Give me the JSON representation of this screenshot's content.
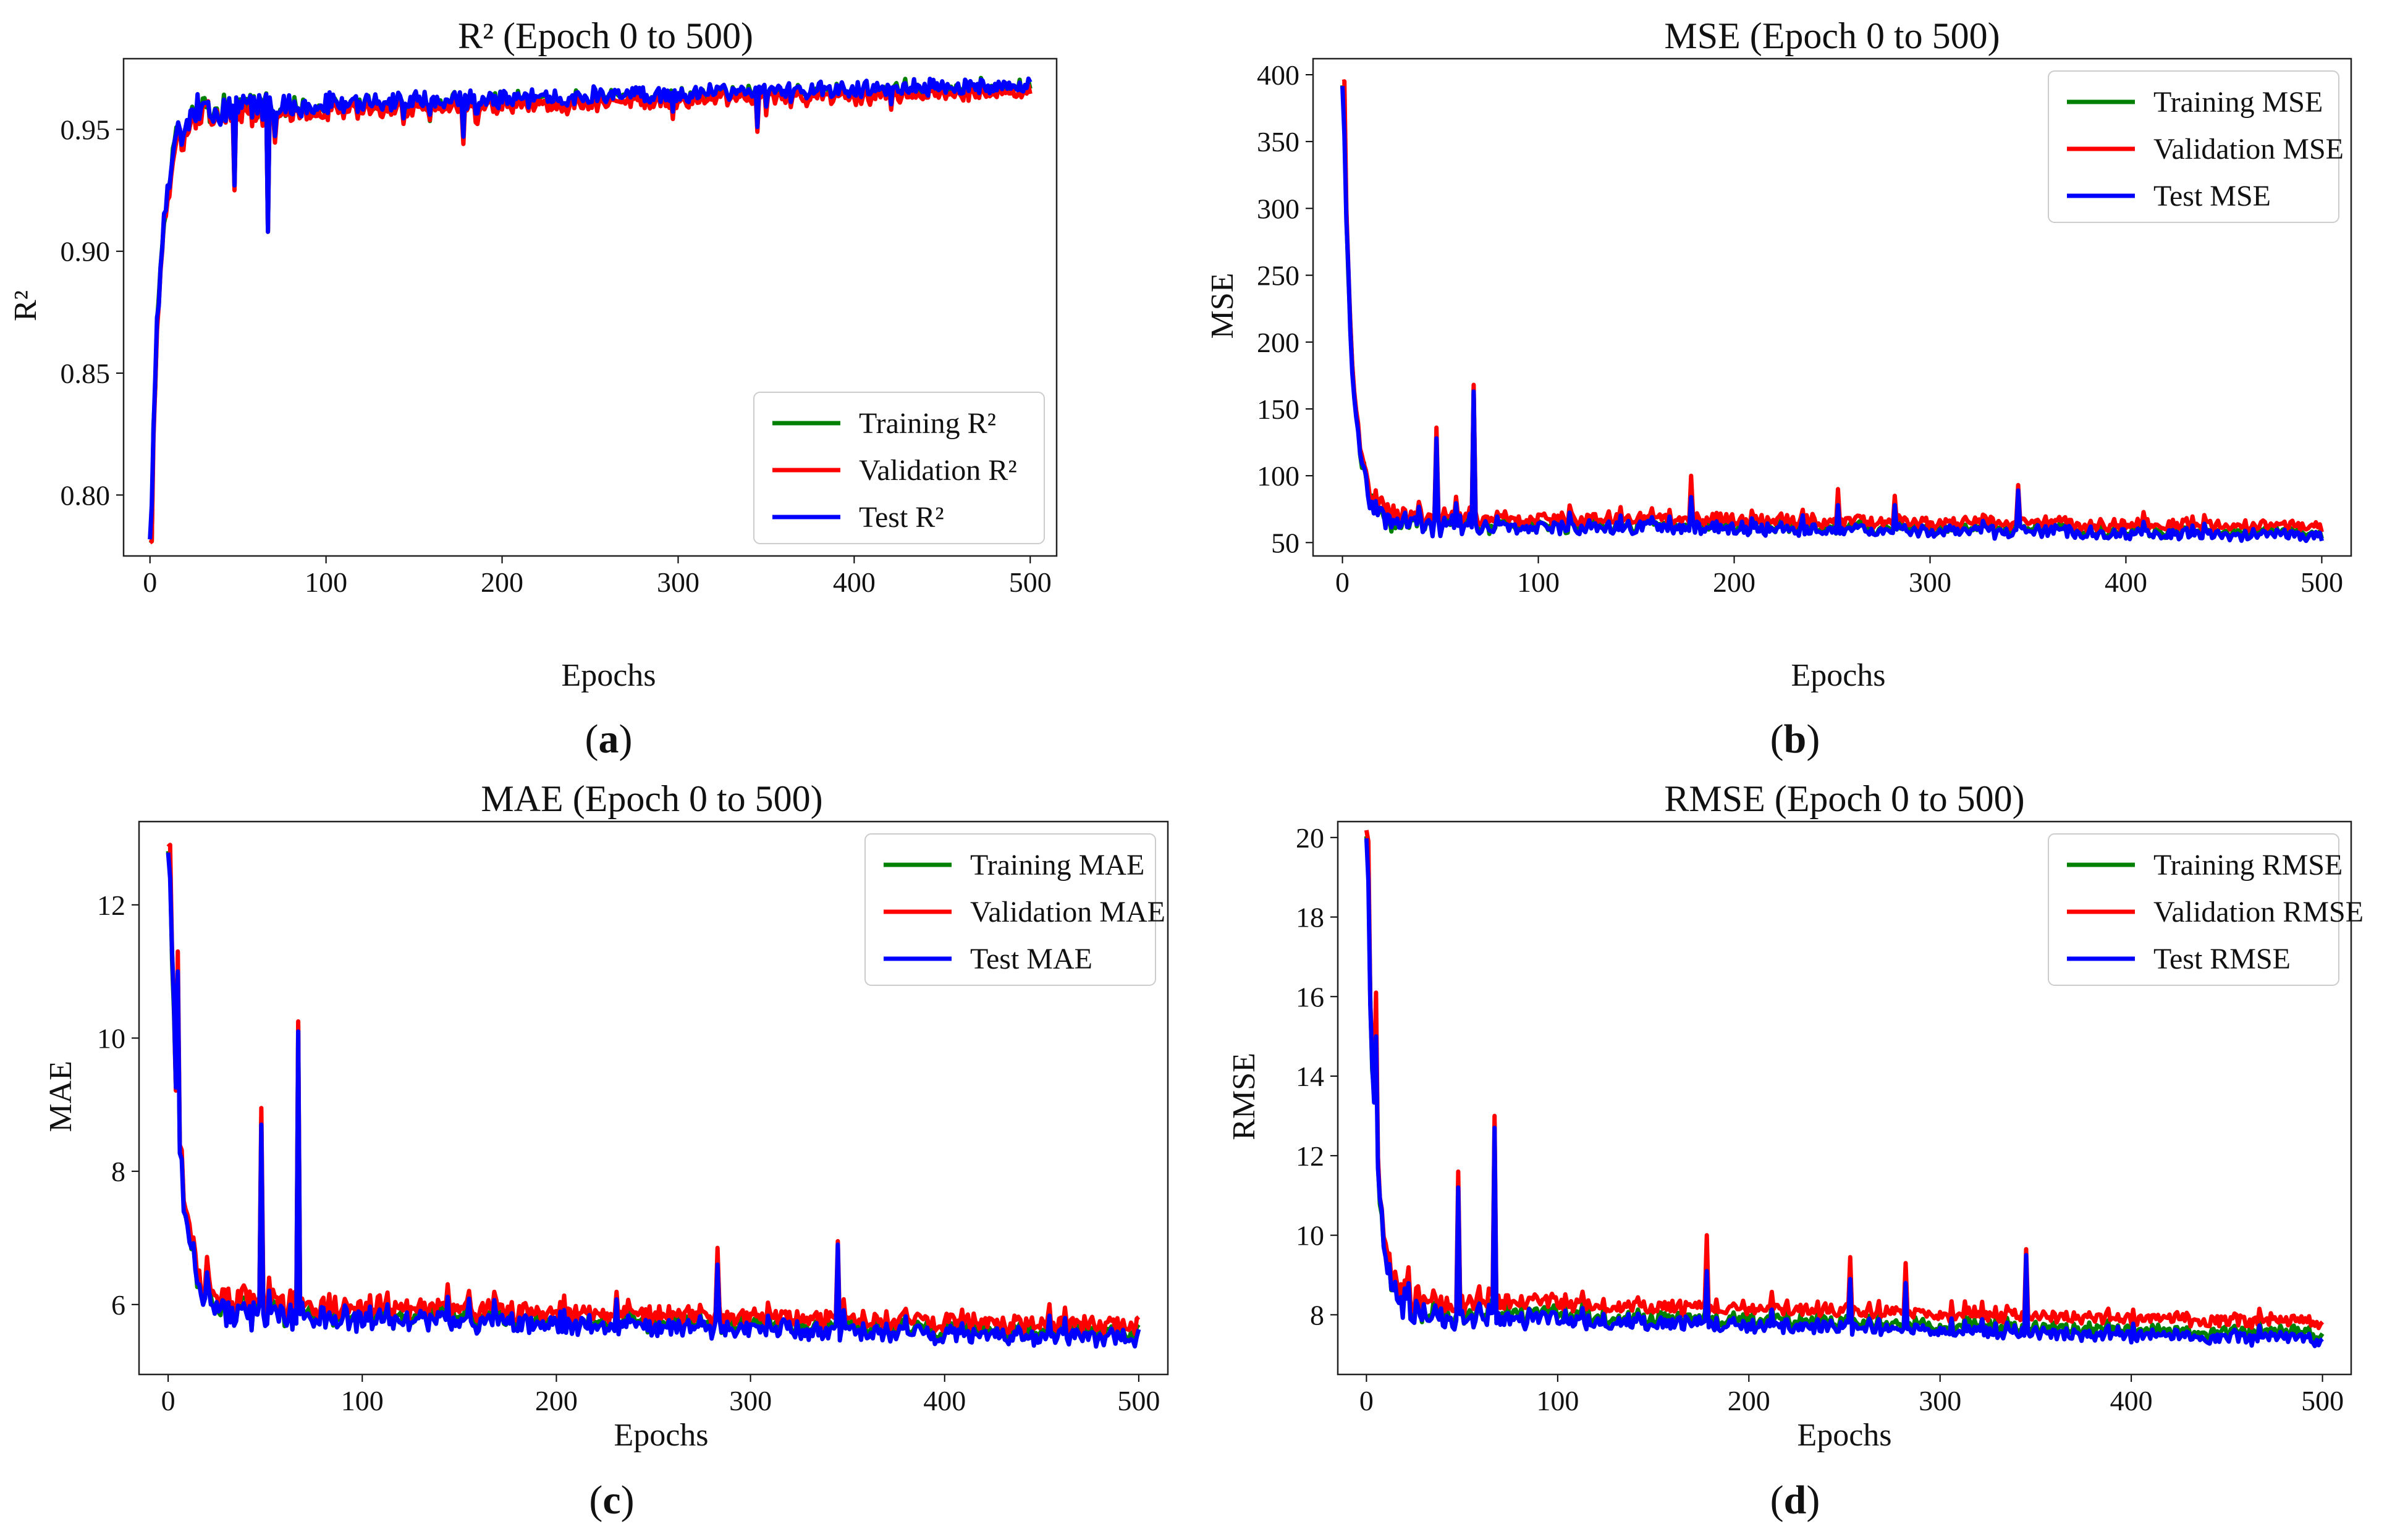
{
  "chart_data": [
    {
      "id": "a",
      "panel_label": "(a)",
      "panel_letter": "a",
      "type": "line",
      "title": "R² (Epoch 0 to 500)",
      "xlabel": "Epochs",
      "ylabel": "R²",
      "xlim": [
        -15,
        515
      ],
      "ylim": [
        0.775,
        0.979
      ],
      "xticks": [
        0,
        100,
        200,
        300,
        400,
        500
      ],
      "yticks": [
        0.8,
        0.85,
        0.9,
        0.95
      ],
      "ytick_labels": [
        "0.80",
        "0.85",
        "0.90",
        "0.95"
      ],
      "legend_position": "lower-right",
      "curve": {
        "start": 0.78,
        "plateau": 0.958,
        "end": 0.968,
        "tau": 6,
        "noise": 0.003,
        "direction": "up"
      },
      "spikes": [
        {
          "x": 1,
          "series": [
            0.781,
            0.781,
            0.796
          ]
        },
        {
          "x": 48,
          "series": [
            0.926,
            0.925,
            0.927
          ]
        },
        {
          "x": 67,
          "series": [
            0.908,
            0.908,
            0.908
          ]
        },
        {
          "x": 178,
          "series": [
            0.946,
            0.944,
            0.947
          ]
        },
        {
          "x": 345,
          "series": [
            0.95,
            0.949,
            0.951
          ]
        }
      ],
      "series": [
        {
          "name": "Training R²",
          "color": "#008000",
          "offset": 0.0
        },
        {
          "name": "Validation R²",
          "color": "#ff0000",
          "offset": -0.002
        },
        {
          "name": "Test R²",
          "color": "#0000ff",
          "offset": 0.0005
        }
      ]
    },
    {
      "id": "b",
      "panel_label": "(b)",
      "panel_letter": "b",
      "type": "line",
      "title": "MSE (Epoch 0 to 500)",
      "xlabel": "Epochs",
      "ylabel": "MSE",
      "xlim": [
        -15,
        515
      ],
      "ylim": [
        40,
        412
      ],
      "xticks": [
        0,
        100,
        200,
        300,
        400,
        500
      ],
      "yticks": [
        50,
        100,
        150,
        200,
        250,
        300,
        350,
        400
      ],
      "ytick_labels": [
        "50",
        "100",
        "150",
        "200",
        "250",
        "300",
        "350",
        "400"
      ],
      "legend_position": "top-right",
      "curve": {
        "start": 395,
        "plateau": 65,
        "end": 57,
        "tau": 5,
        "noise": 4,
        "direction": "down"
      },
      "spikes": [
        {
          "x": 1,
          "series": [
            370,
            395,
            355
          ]
        },
        {
          "x": 48,
          "series": [
            130,
            136,
            128
          ]
        },
        {
          "x": 67,
          "series": [
            165,
            168,
            163
          ]
        },
        {
          "x": 178,
          "series": [
            90,
            100,
            84
          ]
        },
        {
          "x": 253,
          "series": [
            85,
            90,
            78
          ]
        },
        {
          "x": 282,
          "series": [
            82,
            85,
            78
          ]
        },
        {
          "x": 345,
          "series": [
            88,
            93,
            89
          ]
        }
      ],
      "series": [
        {
          "name": "Training MSE",
          "color": "#008000",
          "offset": 0
        },
        {
          "name": "Validation MSE",
          "color": "#ff0000",
          "offset": 5
        },
        {
          "name": "Test MSE",
          "color": "#0000ff",
          "offset": -1.5
        }
      ]
    },
    {
      "id": "c",
      "panel_label": "(c)",
      "panel_letter": "c",
      "type": "line",
      "title": "MAE (Epoch 0 to 500)",
      "xlabel": "Epochs",
      "ylabel": "MAE",
      "xlim": [
        -15,
        515
      ],
      "ylim": [
        4.95,
        13.25
      ],
      "xticks": [
        0,
        100,
        200,
        300,
        400,
        500
      ],
      "yticks": [
        6,
        8,
        10,
        12
      ],
      "ytick_labels": [
        "6",
        "8",
        "10",
        "12"
      ],
      "legend_position": "top-right",
      "curve": {
        "start": 12.8,
        "plateau": 5.9,
        "end": 5.55,
        "tau": 6,
        "noise": 0.12,
        "direction": "down"
      },
      "spikes": [
        {
          "x": 1,
          "series": [
            12.6,
            12.9,
            12.4
          ]
        },
        {
          "x": 5,
          "series": [
            11.0,
            11.3,
            11.0
          ]
        },
        {
          "x": 48,
          "series": [
            8.8,
            8.95,
            8.7
          ]
        },
        {
          "x": 67,
          "series": [
            10.2,
            10.25,
            10.1
          ]
        },
        {
          "x": 283,
          "series": [
            6.7,
            6.85,
            6.6
          ]
        },
        {
          "x": 345,
          "series": [
            6.8,
            6.95,
            6.9
          ]
        }
      ],
      "series": [
        {
          "name": "Training MAE",
          "color": "#008000",
          "offset": 0
        },
        {
          "name": "Validation MAE",
          "color": "#ff0000",
          "offset": 0.12
        },
        {
          "name": "Test MAE",
          "color": "#0000ff",
          "offset": -0.06
        }
      ]
    },
    {
      "id": "d",
      "panel_label": "(d)",
      "panel_letter": "d",
      "type": "line",
      "title": "RMSE (Epoch 0 to 500)",
      "xlabel": "Epochs",
      "ylabel": "RMSE",
      "xlim": [
        -15,
        515
      ],
      "ylim": [
        6.5,
        20.4
      ],
      "xticks": [
        0,
        100,
        200,
        300,
        400,
        500
      ],
      "yticks": [
        8,
        10,
        12,
        14,
        16,
        18,
        20
      ],
      "ytick_labels": [
        "8",
        "10",
        "12",
        "14",
        "16",
        "18",
        "20"
      ],
      "legend_position": "top-right",
      "curve": {
        "start": 19.9,
        "plateau": 8.1,
        "end": 7.5,
        "tau": 5,
        "noise": 0.15,
        "direction": "down"
      },
      "spikes": [
        {
          "x": 1,
          "series": [
            19.2,
            19.9,
            18.9
          ]
        },
        {
          "x": 5,
          "series": [
            15.6,
            16.1,
            15.0
          ]
        },
        {
          "x": 48,
          "series": [
            11.3,
            11.6,
            11.2
          ]
        },
        {
          "x": 67,
          "series": [
            12.8,
            13.0,
            12.7
          ]
        },
        {
          "x": 178,
          "series": [
            9.4,
            10.0,
            9.1
          ]
        },
        {
          "x": 253,
          "series": [
            9.2,
            9.45,
            8.9
          ]
        },
        {
          "x": 282,
          "series": [
            9.0,
            9.3,
            8.8
          ]
        },
        {
          "x": 345,
          "series": [
            9.4,
            9.65,
            9.5
          ]
        }
      ],
      "series": [
        {
          "name": "Training RMSE",
          "color": "#008000",
          "offset": 0
        },
        {
          "name": "Validation RMSE",
          "color": "#ff0000",
          "offset": 0.3
        },
        {
          "name": "Test RMSE",
          "color": "#0000ff",
          "offset": -0.12
        }
      ]
    }
  ]
}
